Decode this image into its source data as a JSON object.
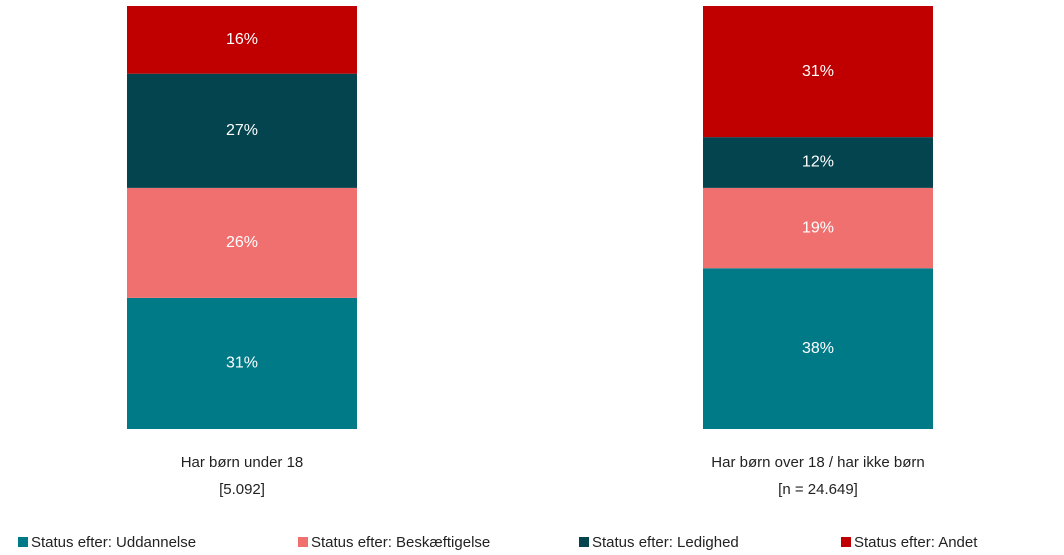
{
  "chart_data": {
    "type": "stacked_bar",
    "categories": [
      [
        "Har børn under 18",
        "[5.092]"
      ],
      [
        "Har børn over 18 / har ikke børn",
        "[n = 24.649]"
      ]
    ],
    "series": [
      {
        "name": "Status efter: Uddannelse",
        "color": "#007a87",
        "values": [
          31,
          38
        ],
        "value_labels": [
          "31%",
          "38%"
        ]
      },
      {
        "name": "Status efter: Beskæftigelse",
        "color": "#f07070",
        "values": [
          26,
          19
        ],
        "value_labels": [
          "26%",
          "19%"
        ]
      },
      {
        "name": "Status efter: Ledighed",
        "color": "#04444f",
        "values": [
          27,
          12
        ],
        "value_labels": [
          "27%",
          "12%"
        ]
      },
      {
        "name": "Status efter: Andet",
        "color": "#c00000",
        "values": [
          16,
          31
        ],
        "value_labels": [
          "16%",
          "31%"
        ]
      }
    ],
    "legend": "bottom"
  }
}
